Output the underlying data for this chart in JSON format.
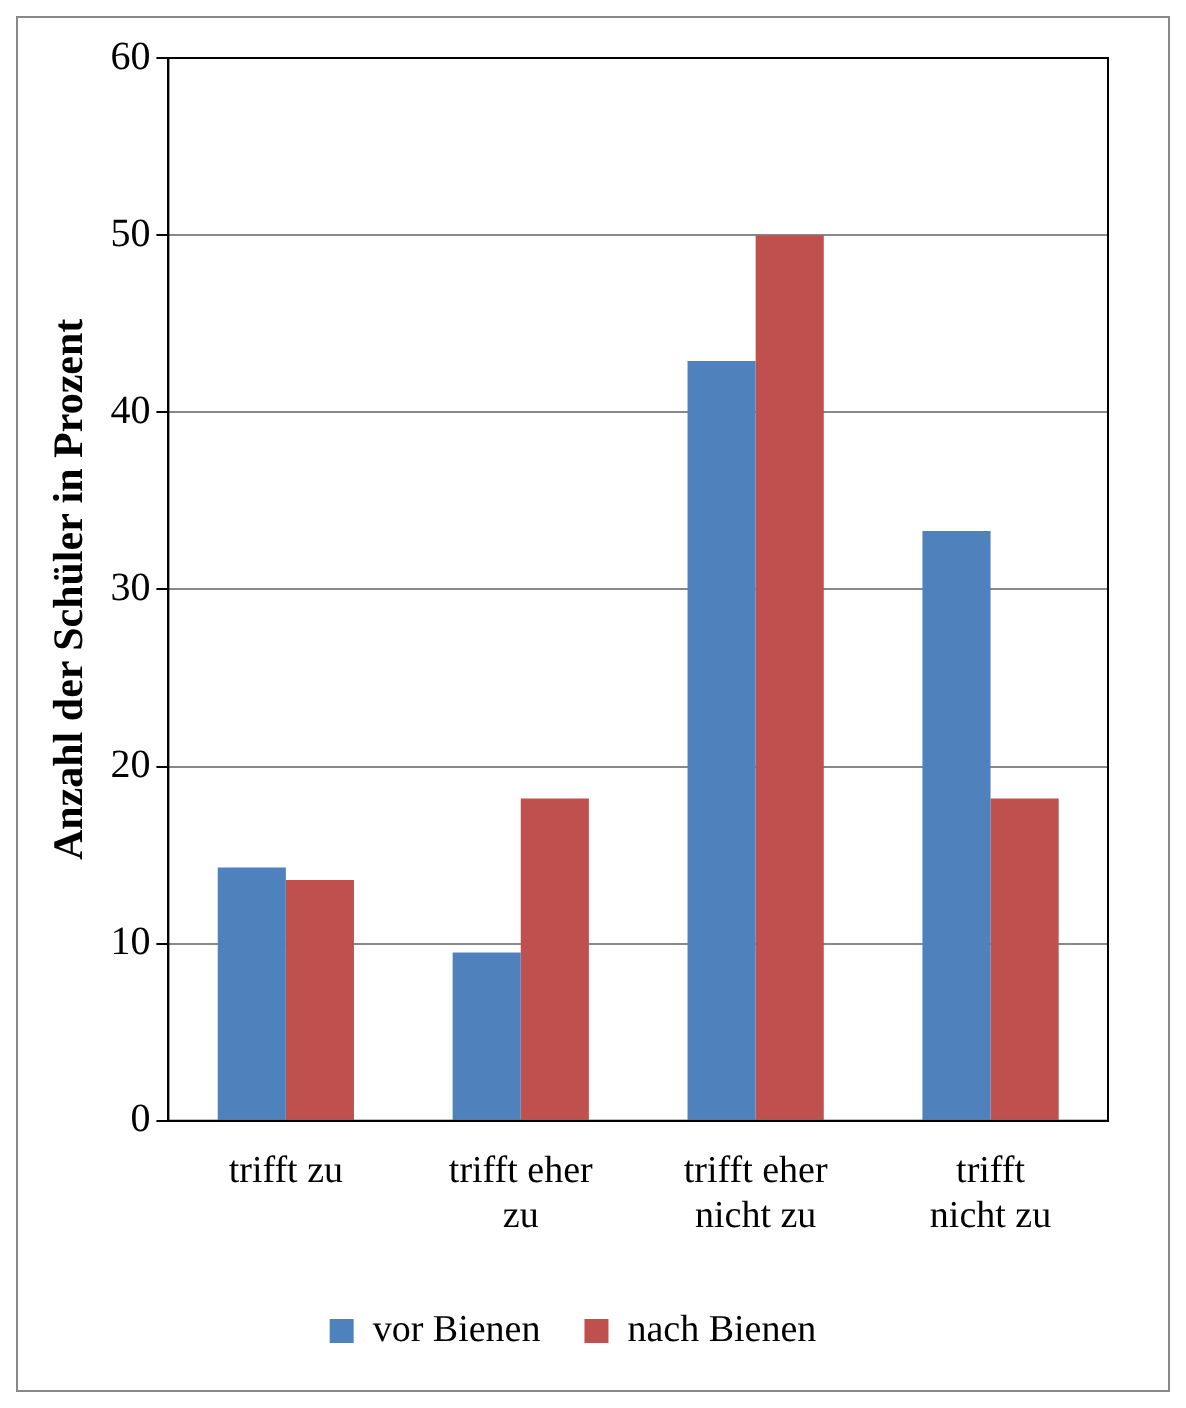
{
  "chart_data": {
    "type": "bar",
    "ylabel": "Anzahl der Schüler in Prozent",
    "categories": [
      "trifft zu",
      "trifft eher zu",
      "trifft eher nicht zu",
      "trifft nicht zu"
    ],
    "series": [
      {
        "name": "vor Bienen",
        "color": "#4f81bd",
        "values": [
          14.3,
          9.5,
          42.9,
          33.3
        ]
      },
      {
        "name": "nach Bienen",
        "color": "#c0504d",
        "values": [
          13.6,
          18.2,
          50,
          18.2
        ]
      }
    ],
    "ylim": [
      0,
      60
    ],
    "yticks": [
      0,
      10,
      20,
      30,
      40,
      50,
      60
    ],
    "grid": "y",
    "legend": "bottom"
  }
}
